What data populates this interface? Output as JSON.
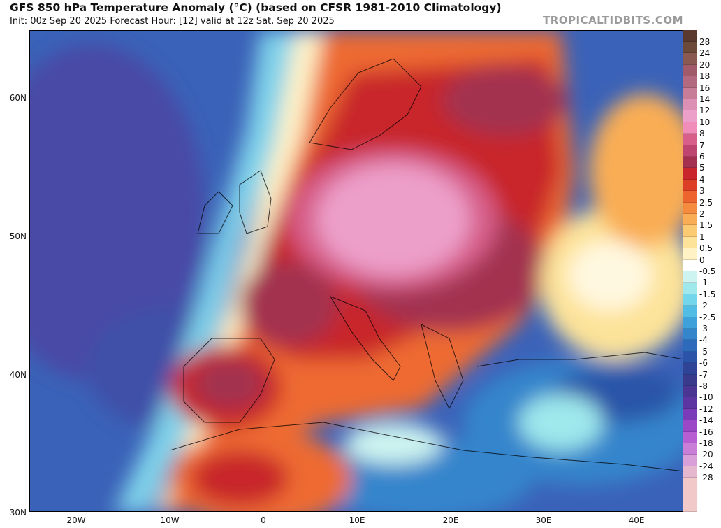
{
  "header": {
    "title": "GFS 850 hPa Temperature Anomaly (°C) (based on CFSR 1981-2010 Climatology)",
    "subtitle": "Init: 00z Sep 20 2025   Forecast Hour: [12]   valid at 12z Sat, Sep 20 2025",
    "credit": "TROPICALTIDBITS.COM"
  },
  "map": {
    "lat_labels": [
      "60N",
      "50N",
      "40N",
      "30N"
    ],
    "lon_labels": [
      "20W",
      "10W",
      "0",
      "10E",
      "20E",
      "30E",
      "40E"
    ]
  },
  "colorbar": {
    "labels": [
      "28",
      "24",
      "20",
      "18",
      "16",
      "14",
      "12",
      "10",
      "8",
      "7",
      "6",
      "5",
      "4",
      "3",
      "2.5",
      "2",
      "1.5",
      "1",
      "0.5",
      "0",
      "-0.5",
      "-1",
      "-1.5",
      "-2",
      "-2.5",
      "-3",
      "-4",
      "-5",
      "-6",
      "-7",
      "-8",
      "-10",
      "-12",
      "-14",
      "-16",
      "-18",
      "-20",
      "-24",
      "-28"
    ],
    "colors": [
      "#6b4a3a",
      "#8a5a52",
      "#a05a6a",
      "#b36a80",
      "#c77c98",
      "#db90b4",
      "#ec9fc9",
      "#f08db8",
      "#d75f8a",
      "#bd4570",
      "#a3304f",
      "#c8262c",
      "#dd3f26",
      "#ee642f",
      "#f58b3f",
      "#f9ad55",
      "#fbcb74",
      "#fde39a",
      "#fff2c4",
      "#ffffff",
      "#cdf4f0",
      "#9fe8ec",
      "#74d6ea",
      "#52bde4",
      "#3fa1da",
      "#3585cc",
      "#2e6abb",
      "#2b54a8",
      "#2f4497",
      "#3a3a8c",
      "#4a3592",
      "#5c35a2",
      "#7a3cb8",
      "#9a47c8",
      "#b65ed2",
      "#c97ed8",
      "#d99fd8",
      "#e6b8d0",
      "#f0c9c8"
    ]
  }
}
